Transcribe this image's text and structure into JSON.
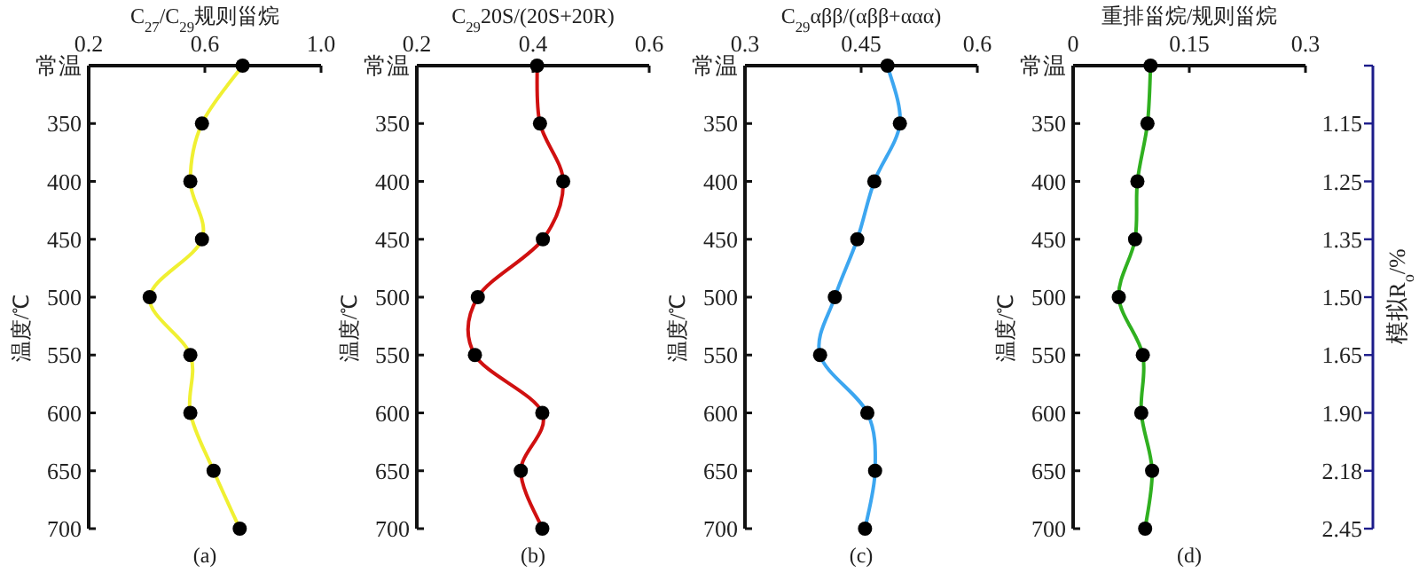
{
  "chart_data": [
    {
      "type": "line",
      "orientation": "horizontal",
      "title": "C$_{27}$/C$_{29}$规则甾烷",
      "xlabel": "(a)",
      "ylabel": "温度/℃",
      "categories": [
        "常温",
        "350",
        "400",
        "450",
        "500",
        "550",
        "600",
        "650",
        "700"
      ],
      "xlim": [
        0.2,
        1.0
      ],
      "xticks": [
        0.2,
        0.6,
        {
          "value": 1.0,
          "label": "1.0"
        }
      ],
      "marker": "circle",
      "series": [
        {
          "color": "#f0f032",
          "values": [
            0.73,
            0.59,
            0.55,
            0.59,
            0.41,
            0.55,
            0.55,
            0.63,
            0.72
          ]
        }
      ]
    },
    {
      "type": "line",
      "orientation": "horizontal",
      "title": "C$_{29}$20S/(20S+20R)",
      "xlabel": "(b)",
      "ylabel": "温度/℃",
      "categories": [
        "常温",
        "350",
        "400",
        "450",
        "500",
        "550",
        "600",
        "650",
        "700"
      ],
      "xlim": [
        0.2,
        0.6
      ],
      "xticks": [
        0.2,
        0.4,
        0.6
      ],
      "marker": "circle",
      "series": [
        {
          "color": "#d01010",
          "values": [
            0.407,
            0.412,
            0.452,
            0.417,
            0.305,
            0.3,
            0.416,
            0.379,
            0.416
          ]
        }
      ]
    },
    {
      "type": "line",
      "orientation": "horizontal",
      "title": "C$_{29}$αββ/(αββ+ααα)",
      "xlabel": "(c)",
      "ylabel": "温度/℃",
      "categories": [
        "常温",
        "350",
        "400",
        "450",
        "500",
        "550",
        "600",
        "650",
        "700"
      ],
      "xlim": [
        0.3,
        0.6
      ],
      "xticks": [
        0.3,
        0.45,
        0.6
      ],
      "marker": "circle",
      "series": [
        {
          "color": "#3ca6f0",
          "values": [
            0.484,
            0.5,
            0.467,
            0.445,
            0.416,
            0.397,
            0.458,
            0.468,
            0.455
          ]
        }
      ]
    },
    {
      "type": "line",
      "orientation": "horizontal",
      "title": "重排甾烷/规则甾烷",
      "xlabel": "(d)",
      "ylabel": "温度/℃",
      "categories": [
        "常温",
        "350",
        "400",
        "450",
        "500",
        "550",
        "600",
        "650",
        "700"
      ],
      "xlim": [
        0,
        0.3
      ],
      "xticks": [
        0,
        0.15,
        0.3
      ],
      "marker": "circle",
      "y2label": "模拟R$_{o}$/%",
      "y2_categories": [
        null,
        "1.15",
        "1.25",
        "1.35",
        "1.50",
        "1.65",
        "1.90",
        "2.18",
        "2.45"
      ],
      "series": [
        {
          "color": "#30b020",
          "values": [
            0.1,
            0.096,
            0.083,
            0.08,
            0.059,
            0.09,
            0.088,
            0.102,
            0.093
          ]
        }
      ]
    }
  ]
}
